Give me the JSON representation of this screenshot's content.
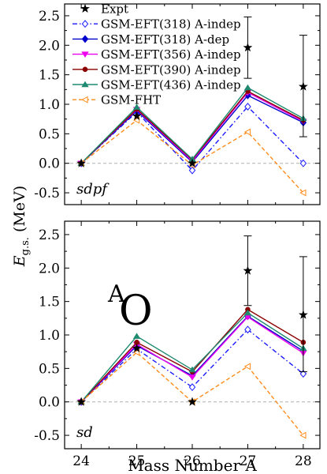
{
  "chart_data": [
    {
      "type": "line",
      "panel_label": "sdpf",
      "annotation": "",
      "xlabel": "",
      "ylabel_main": "E",
      "ylabel_sub": "g.s.",
      "ylabel_unit": " (MeV)",
      "x": [
        24,
        25,
        26,
        27,
        28
      ],
      "xlim": [
        23.7,
        28.3
      ],
      "ylim": [
        -0.7,
        2.7
      ],
      "yticks": [
        -0.5,
        0.0,
        0.5,
        1.0,
        1.5,
        2.0,
        2.5
      ],
      "ytick_labels": [
        "-0.5",
        "0.0",
        "0.5",
        "1.0",
        "1.5",
        "2.0",
        "2.5"
      ],
      "grid": false,
      "zero_line": true,
      "legend": "top-left",
      "expt": {
        "name": "Expt",
        "color": "#000000",
        "values": [
          0.0,
          0.8,
          0.0,
          1.96,
          1.3
        ],
        "err_low": [
          null,
          null,
          null,
          1.44,
          0.45
        ],
        "err_high": [
          null,
          null,
          null,
          2.48,
          2.17
        ]
      },
      "series": [
        {
          "name": "GSM-EFT(318) A-indep",
          "color": "#1a1aff",
          "dash": "dashdot",
          "marker": "diamond-open",
          "values": [
            0.0,
            0.87,
            -0.12,
            0.96,
            0.0
          ]
        },
        {
          "name": "GSM-EFT(318) A-dep",
          "color": "#0000cc",
          "dash": "solid",
          "marker": "diamond",
          "values": [
            0.0,
            0.89,
            0.02,
            1.15,
            0.69
          ]
        },
        {
          "name": "GSM-EFT(356) A-indep",
          "color": "#ee00ee",
          "dash": "solid",
          "marker": "triangle-down",
          "values": [
            0.0,
            0.91,
            0.04,
            1.2,
            0.71
          ]
        },
        {
          "name": "GSM-EFT(390) A-indep",
          "color": "#8b0000",
          "dash": "solid",
          "marker": "circle",
          "values": [
            0.0,
            0.92,
            0.06,
            1.22,
            0.73
          ]
        },
        {
          "name": "GSM-EFT(436) A-indep",
          "color": "#1f8a70",
          "dash": "solid",
          "marker": "triangle-up",
          "values": [
            0.0,
            0.95,
            0.07,
            1.28,
            0.76
          ]
        },
        {
          "name": "GSM-FHT",
          "color": "#ff8c1a",
          "dash": "dashed",
          "marker": "triangle-left-open",
          "values": [
            0.0,
            0.73,
            -0.03,
            0.53,
            -0.5
          ]
        }
      ]
    },
    {
      "type": "line",
      "panel_label": "sd",
      "annotation": "O",
      "annotation_super": "A",
      "xlabel": "Mass Number A",
      "ylabel_main": "E",
      "ylabel_sub": "g.s.",
      "ylabel_unit": " (MeV)",
      "x": [
        24,
        25,
        26,
        27,
        28
      ],
      "xlim": [
        23.7,
        28.3
      ],
      "ylim": [
        -0.7,
        2.7
      ],
      "xticks": [
        24,
        25,
        26,
        27,
        28
      ],
      "xtick_labels": [
        "24",
        "25",
        "26",
        "27",
        "28"
      ],
      "yticks": [
        -0.5,
        0.0,
        0.5,
        1.0,
        1.5,
        2.0,
        2.5
      ],
      "ytick_labels": [
        "-0.5",
        "0.0",
        "0.5",
        "1.0",
        "1.5",
        "2.0",
        "2.5"
      ],
      "grid": false,
      "zero_line": true,
      "expt": {
        "name": "Expt",
        "color": "#000000",
        "values": [
          0.0,
          0.8,
          0.0,
          1.96,
          1.3
        ],
        "err_low": [
          null,
          null,
          null,
          1.44,
          0.45
        ],
        "err_high": [
          null,
          null,
          null,
          2.48,
          2.17
        ]
      },
      "series": [
        {
          "name": "GSM-EFT(318) A-indep",
          "color": "#1a1aff",
          "dash": "dashdot",
          "marker": "diamond-open",
          "values": [
            0.0,
            0.79,
            0.22,
            1.08,
            0.42
          ]
        },
        {
          "name": "GSM-EFT(318) A-dep",
          "color": "#0000cc",
          "dash": "solid",
          "marker": "diamond",
          "values": [
            0.0,
            0.84,
            0.39,
            1.28,
            0.76
          ]
        },
        {
          "name": "GSM-EFT(356) A-indep",
          "color": "#ee00ee",
          "dash": "solid",
          "marker": "triangle-down",
          "values": [
            0.0,
            0.86,
            0.37,
            1.27,
            0.73
          ]
        },
        {
          "name": "GSM-EFT(390) A-indep",
          "color": "#8b0000",
          "dash": "solid",
          "marker": "circle",
          "values": [
            0.0,
            0.89,
            0.45,
            1.38,
            0.89
          ]
        },
        {
          "name": "GSM-EFT(436) A-indep",
          "color": "#1f8a70",
          "dash": "solid",
          "marker": "triangle-up",
          "values": [
            0.0,
            0.98,
            0.48,
            1.33,
            0.8
          ]
        },
        {
          "name": "GSM-FHT",
          "color": "#ff8c1a",
          "dash": "dashed",
          "marker": "triangle-left-open",
          "values": [
            0.0,
            0.74,
            0.0,
            0.53,
            -0.5
          ]
        }
      ]
    }
  ]
}
